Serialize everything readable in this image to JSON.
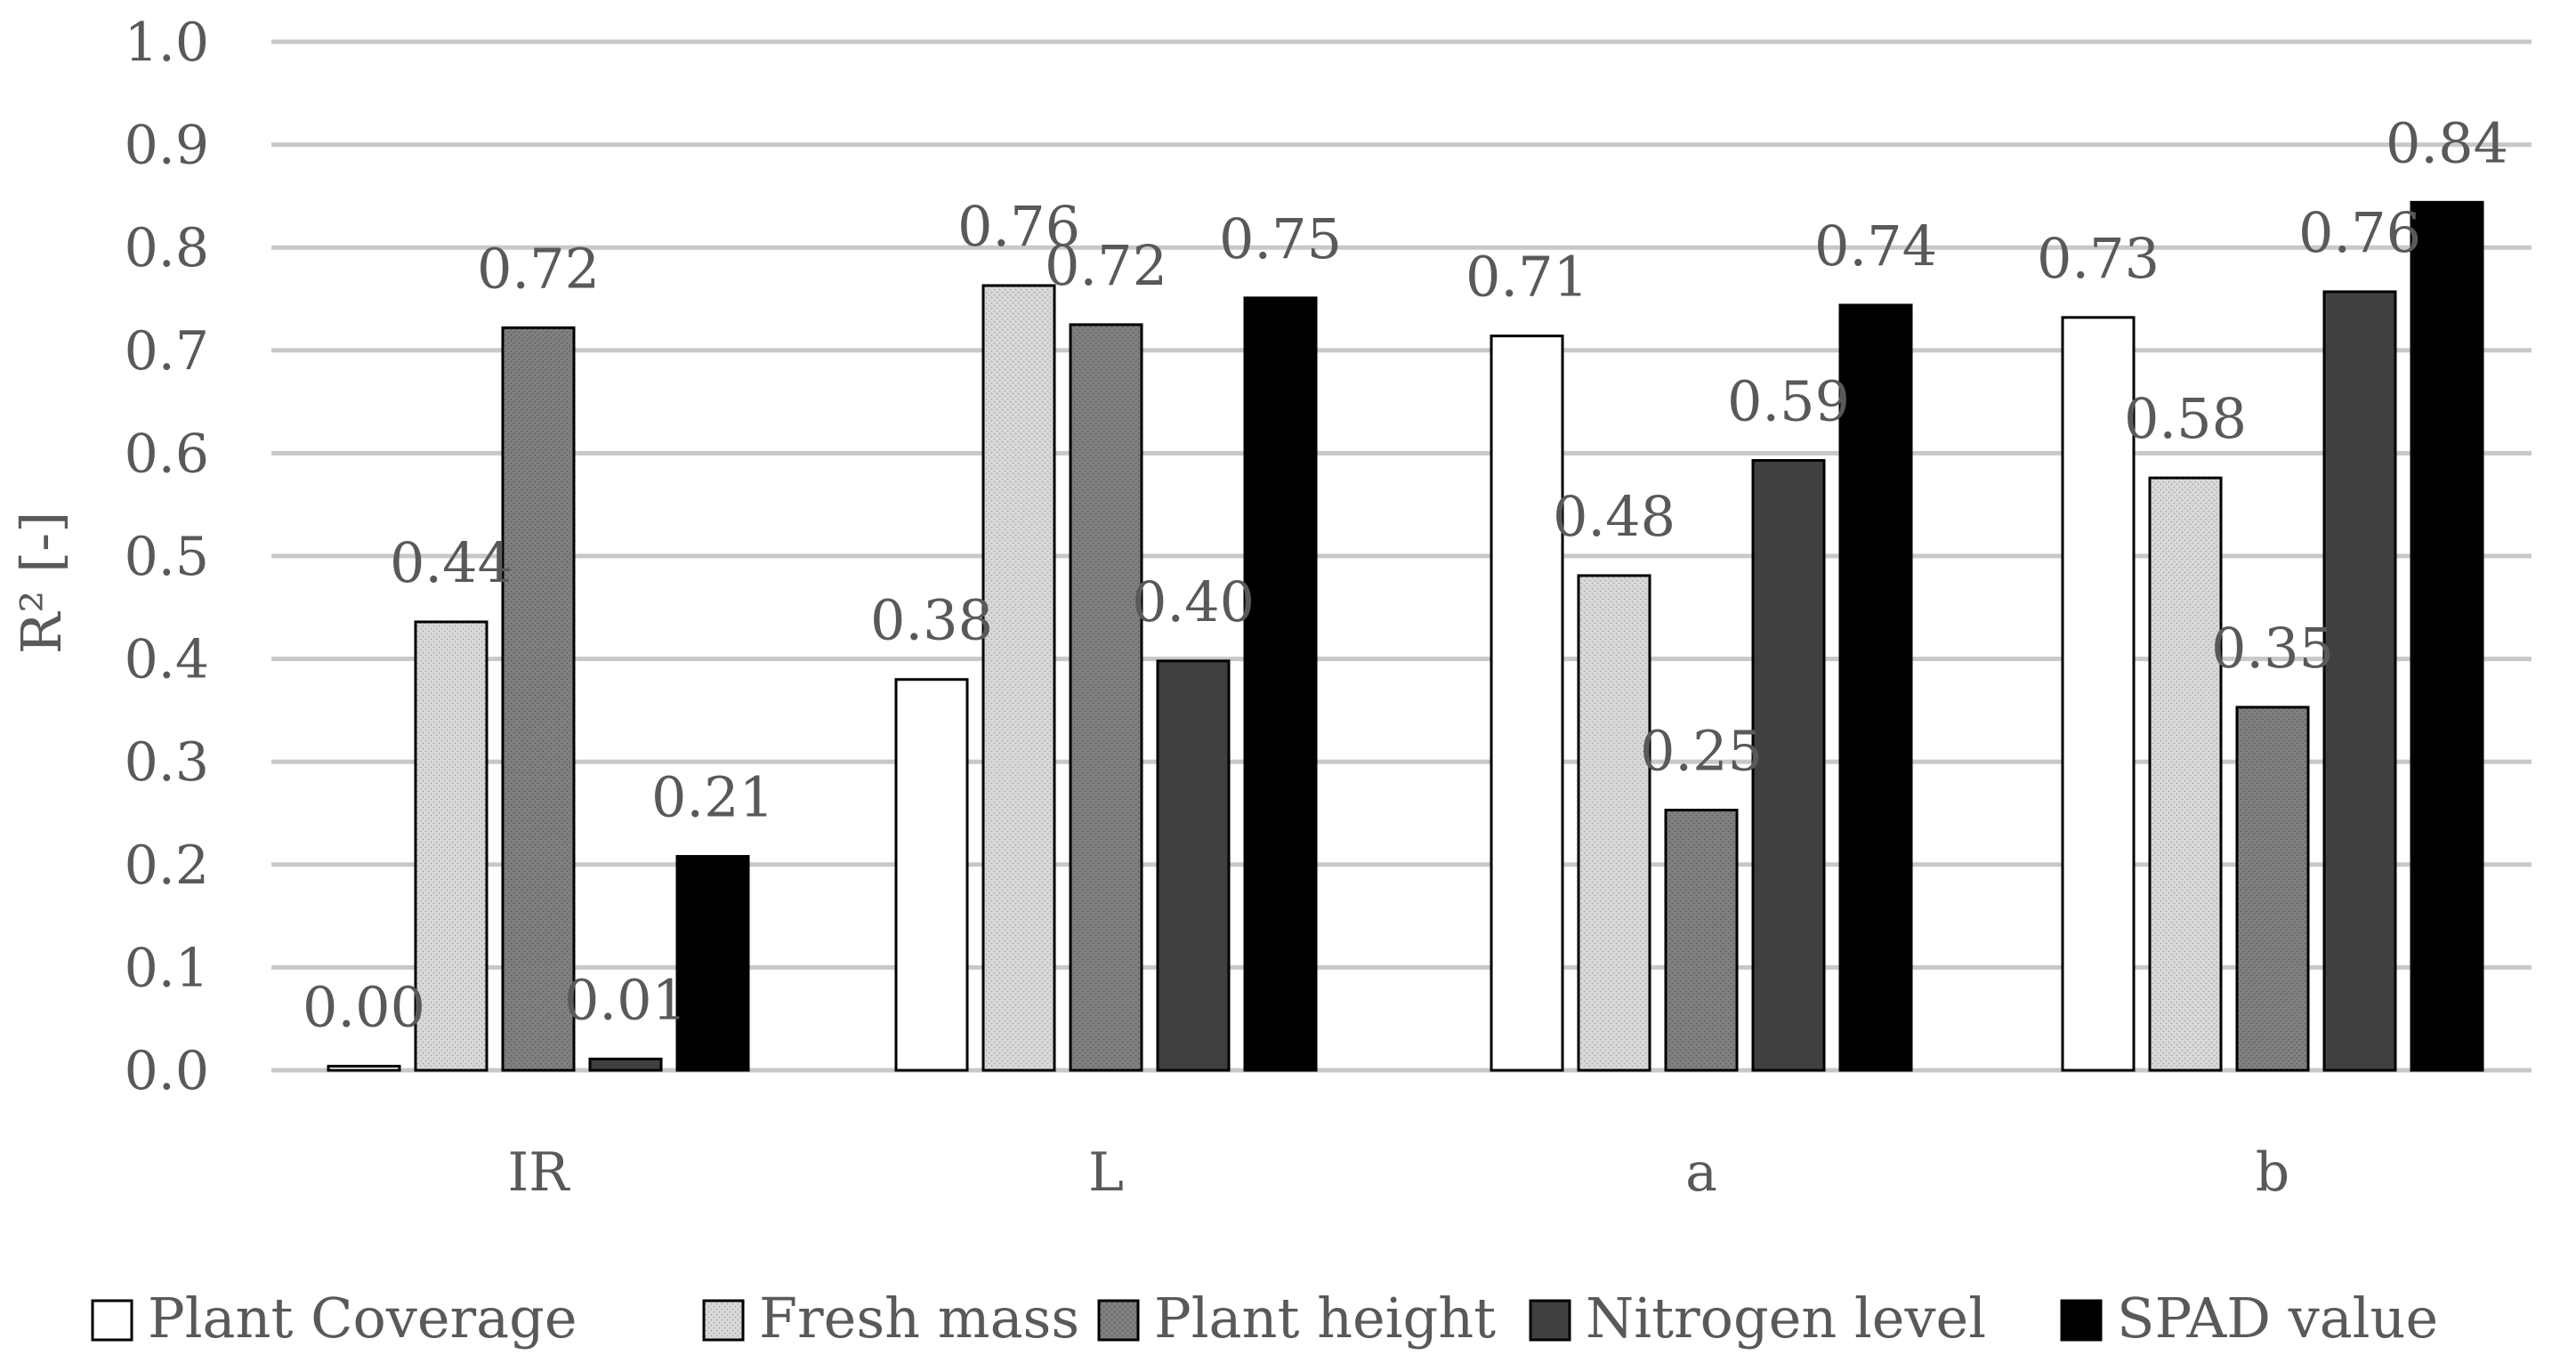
{
  "chart_data": {
    "type": "bar",
    "title": "",
    "xlabel": "",
    "ylabel": "R² [-]",
    "ylim": [
      0,
      1.0
    ],
    "ytick_step": 0.1,
    "ytick_labels": [
      "0.0",
      "0.1",
      "0.2",
      "0.3",
      "0.4",
      "0.5",
      "0.6",
      "0.7",
      "0.8",
      "0.9",
      "1.0"
    ],
    "grid": true,
    "legend_position": "bottom",
    "categories": [
      "IR",
      "L",
      "a",
      "b"
    ],
    "series": [
      {
        "name": "Plant Coverage",
        "color": "#ffffff",
        "pattern": "none",
        "values": [
          0.004,
          0.38,
          0.714,
          0.732
        ],
        "labels": [
          "0.00",
          "0.38",
          "0.71",
          "0.73"
        ]
      },
      {
        "name": "Fresh mass",
        "color": "#d6d6d6",
        "pattern": "dots",
        "values": [
          0.436,
          0.763,
          0.481,
          0.576
        ],
        "labels": [
          "0.44",
          "0.76",
          "0.48",
          "0.58"
        ]
      },
      {
        "name": "Plant height",
        "color": "#7f7f7f",
        "pattern": "dots",
        "values": [
          0.722,
          0.725,
          0.253,
          0.353
        ],
        "labels": [
          "0.72",
          "0.72",
          "0.25",
          "0.35"
        ]
      },
      {
        "name": "Nitrogen level",
        "color": "#404040",
        "pattern": "none",
        "values": [
          0.011,
          0.398,
          0.593,
          0.757
        ],
        "labels": [
          "0.01",
          "0.40",
          "0.59",
          "0.76"
        ]
      },
      {
        "name": "SPAD value",
        "color": "#000000",
        "pattern": "none",
        "values": [
          0.208,
          0.751,
          0.744,
          0.844
        ],
        "labels": [
          "0.21",
          "0.75",
          "0.74",
          "0.84"
        ]
      }
    ]
  }
}
